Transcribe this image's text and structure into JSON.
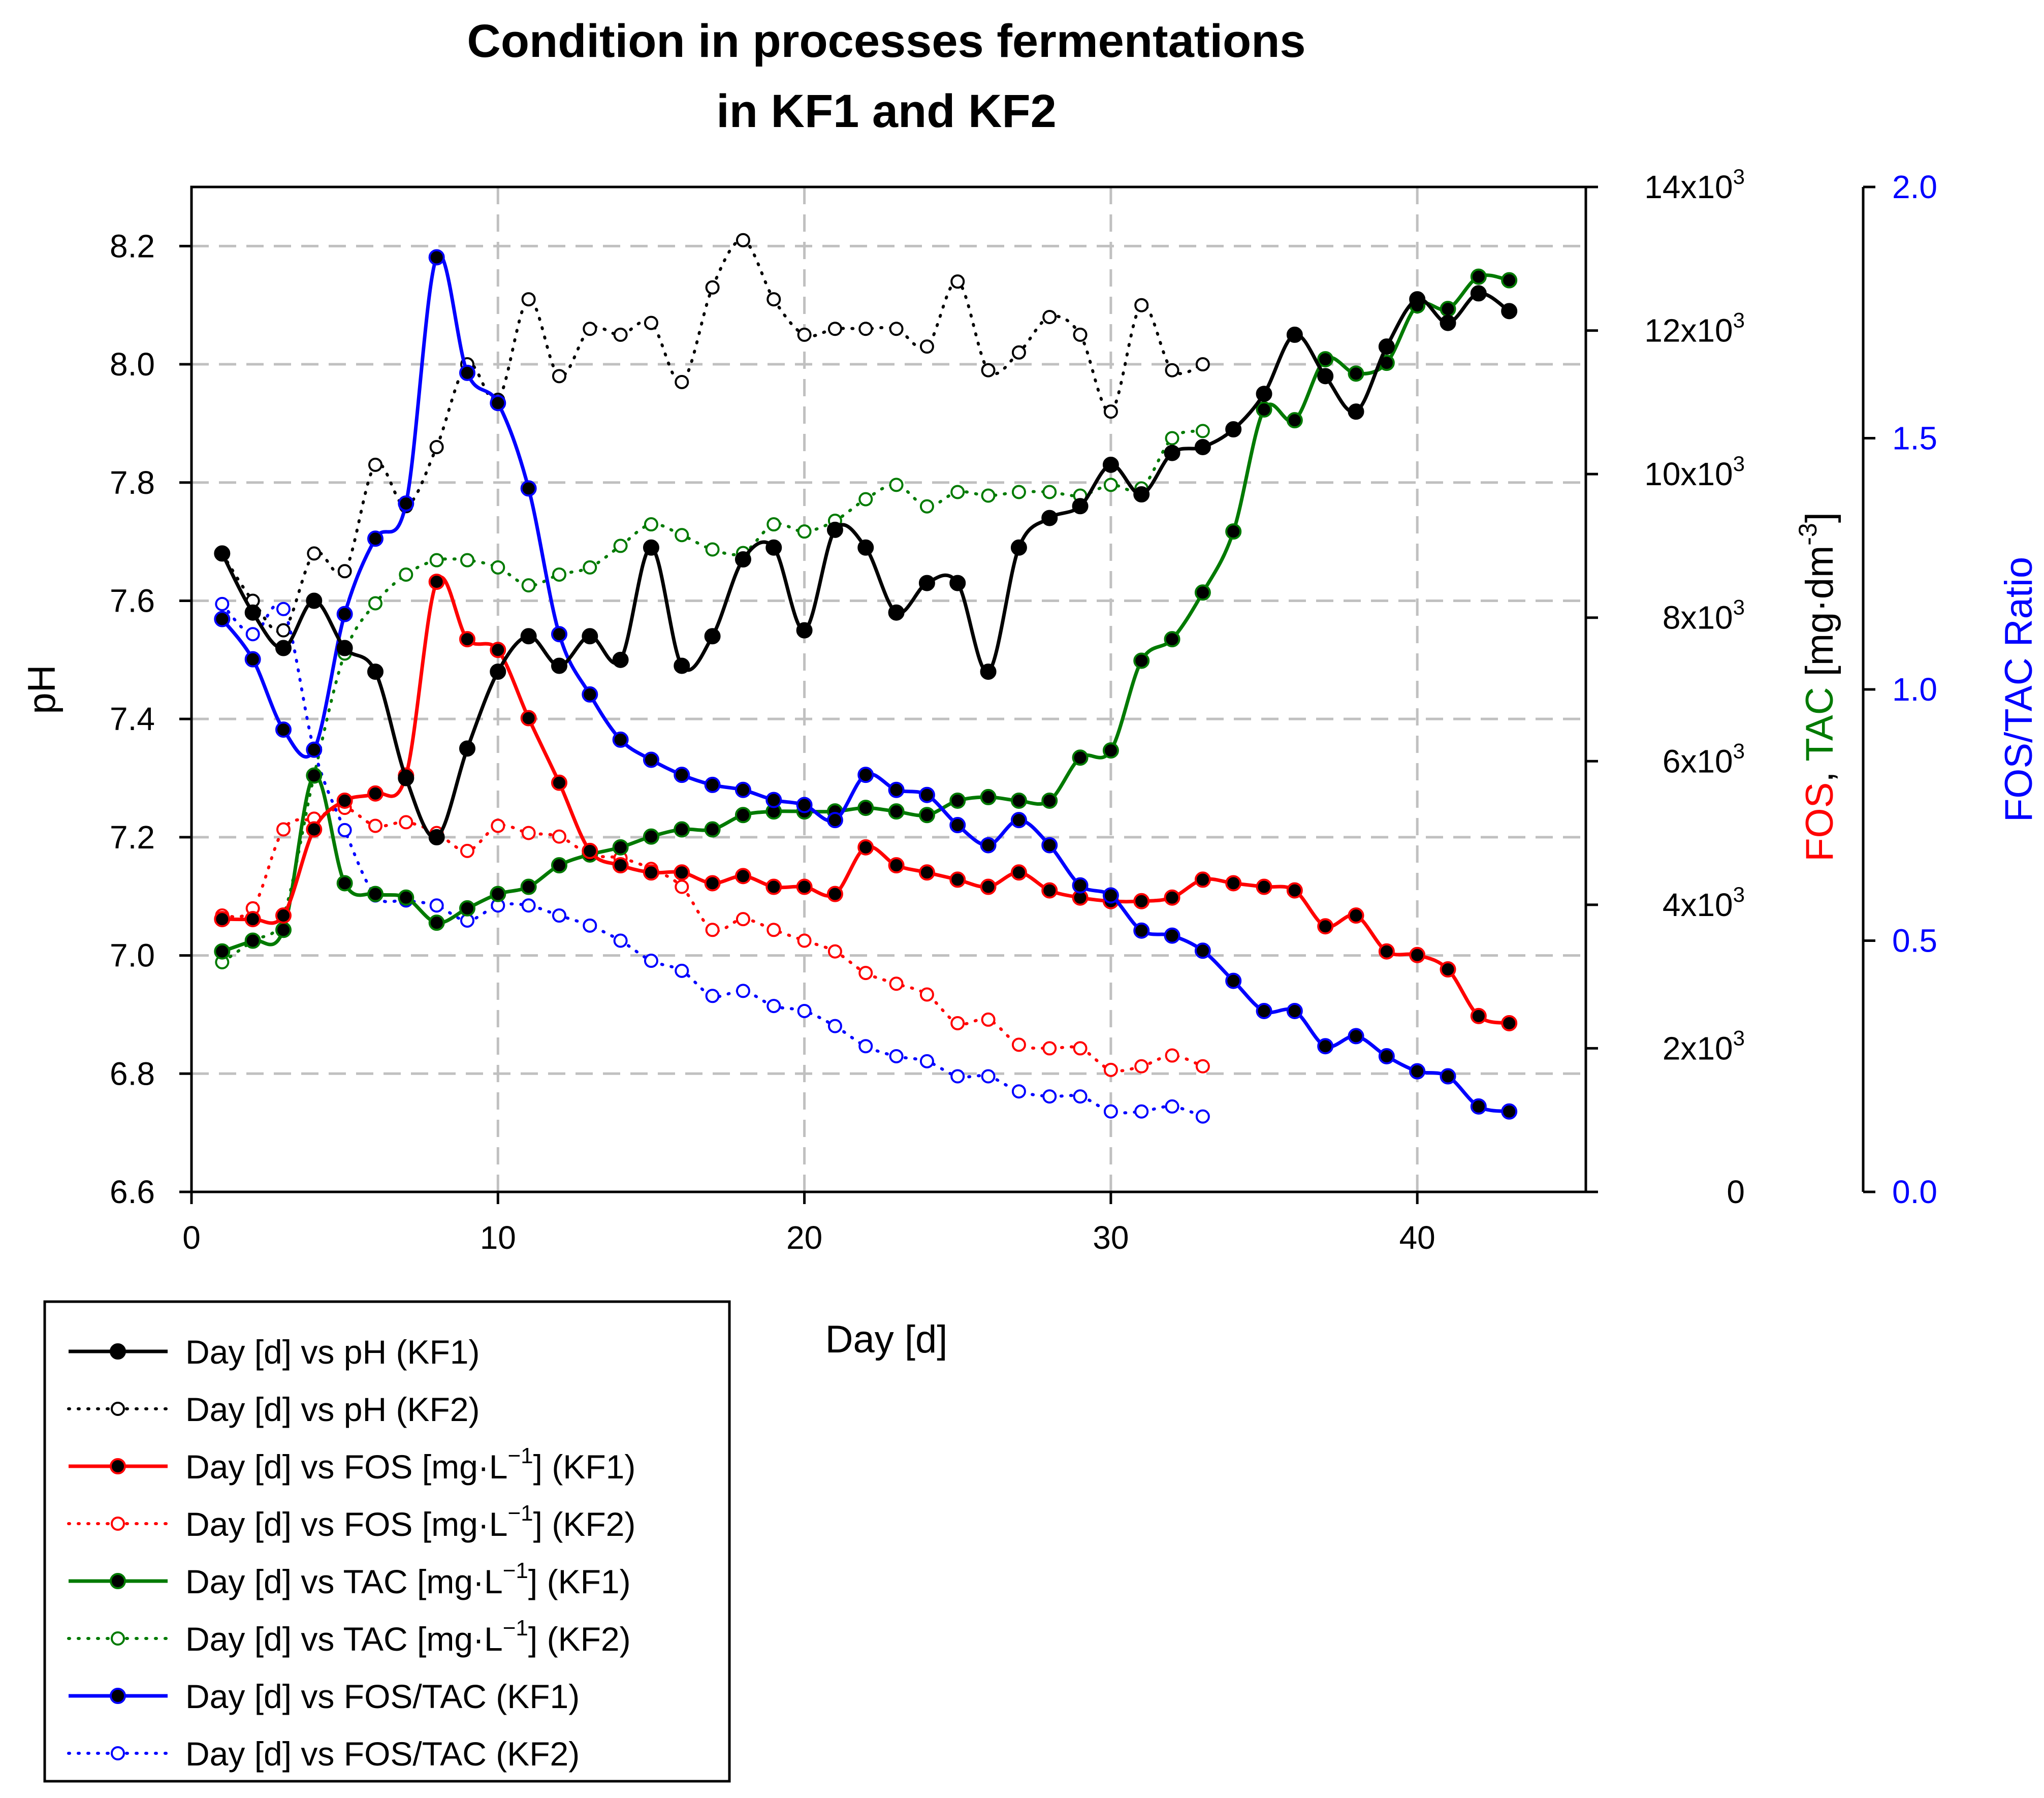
{
  "chart_data": {
    "type": "line",
    "title": "Condition in processes fermentations",
    "title_line2": "in KF1 and KF2",
    "xlabel": "Day [d]",
    "ylabel": "pH",
    "y2label": {
      "fos": "FOS",
      "comma": ",",
      "tac": "TAC",
      "unit": "[mg·dm",
      "unit_exp": "-3",
      "unit_close": "]"
    },
    "y3label": "FOS/TAC Ratio",
    "xlim": [
      0,
      45.5
    ],
    "ylim": [
      6.6,
      8.3
    ],
    "y2lim": [
      0,
      14000
    ],
    "y3lim": [
      0,
      2.0
    ],
    "x_ticks": [
      "0",
      "10",
      "20",
      "30",
      "40"
    ],
    "x_tick_values": [
      0,
      10,
      20,
      30,
      40
    ],
    "y_ticks": [
      "6.6",
      "6.8",
      "7.0",
      "7.2",
      "7.4",
      "7.6",
      "7.8",
      "8.0",
      "8.2"
    ],
    "y_tick_values": [
      6.6,
      6.8,
      7.0,
      7.2,
      7.4,
      7.6,
      7.8,
      8.0,
      8.2
    ],
    "y2_ticks": [
      {
        "mant": "0",
        "exp": ""
      },
      {
        "mant": "2x10",
        "exp": "3"
      },
      {
        "mant": "4x10",
        "exp": "3"
      },
      {
        "mant": "6x10",
        "exp": "3"
      },
      {
        "mant": "8x10",
        "exp": "3"
      },
      {
        "mant": "10x10",
        "exp": "3"
      },
      {
        "mant": "12x10",
        "exp": "3"
      },
      {
        "mant": "14x10",
        "exp": "3"
      }
    ],
    "y2_tick_values": [
      0,
      2000,
      4000,
      6000,
      8000,
      10000,
      12000,
      14000
    ],
    "y3_ticks": [
      "0.0",
      "0.5",
      "1.0",
      "1.5",
      "2.0"
    ],
    "y3_tick_values": [
      0.0,
      0.5,
      1.0,
      1.5,
      2.0
    ],
    "grid": true,
    "legend_position": "bottom-left",
    "colors": {
      "black": "#000000",
      "red": "#ff0000",
      "green": "#007a00",
      "blue": "#0000ff",
      "grid": "#c0c0c0"
    },
    "series": [
      {
        "name": "Day [d] vs pH (KF1)",
        "legend_text": "Day [d] vs pH (KF1)",
        "axis": "pH",
        "color": "black",
        "style": "solid",
        "marker": "filled",
        "x": [
          1,
          2,
          3,
          4,
          5,
          6,
          7,
          8,
          9,
          10,
          11,
          12,
          13,
          14,
          15,
          16,
          17,
          18,
          19,
          20,
          21,
          22,
          23,
          24,
          25,
          26,
          27,
          28,
          29,
          30,
          31,
          32,
          33,
          34,
          35,
          36,
          37,
          38,
          39,
          40,
          41,
          42,
          43
        ],
        "values": [
          7.68,
          7.58,
          7.52,
          7.6,
          7.52,
          7.48,
          7.3,
          7.2,
          7.35,
          7.48,
          7.54,
          7.49,
          7.54,
          7.5,
          7.69,
          7.49,
          7.54,
          7.67,
          7.69,
          7.55,
          7.72,
          7.69,
          7.58,
          7.63,
          7.63,
          7.48,
          7.69,
          7.74,
          7.76,
          7.83,
          7.78,
          7.85,
          7.86,
          7.89,
          7.95,
          8.05,
          7.98,
          7.92,
          8.03,
          8.11,
          8.07,
          8.12,
          8.09
        ]
      },
      {
        "name": "Day [d] vs pH (KF2)",
        "legend_text": "Day [d] vs pH (KF2)",
        "axis": "pH",
        "color": "black",
        "style": "dotted",
        "marker": "open",
        "x": [
          1,
          2,
          3,
          4,
          5,
          6,
          7,
          8,
          9,
          10,
          11,
          12,
          13,
          14,
          15,
          16,
          17,
          18,
          19,
          20,
          21,
          22,
          23,
          24,
          25,
          26,
          27,
          28,
          29,
          30,
          31,
          32,
          33
        ],
        "values": [
          7.68,
          7.6,
          7.55,
          7.68,
          7.65,
          7.83,
          7.76,
          7.86,
          8.0,
          7.94,
          8.11,
          7.98,
          8.06,
          8.05,
          8.07,
          7.97,
          8.13,
          8.21,
          8.11,
          8.05,
          8.06,
          8.06,
          8.06,
          8.03,
          8.14,
          7.99,
          8.02,
          8.08,
          8.05,
          7.92,
          8.1,
          7.99,
          8.0
        ]
      },
      {
        "name": "Day [d] vs FOS [mg·L−1] (KF1)",
        "legend_text": "Day [d] vs FOS [mg·L",
        "legend_exp": "−1",
        "legend_tail": "] (KF1)",
        "axis": "mg",
        "color": "red",
        "style": "solid",
        "marker": "filled",
        "x": [
          1,
          2,
          3,
          4,
          5,
          6,
          7,
          8,
          9,
          10,
          11,
          12,
          13,
          14,
          15,
          16,
          17,
          18,
          19,
          20,
          21,
          22,
          23,
          24,
          25,
          26,
          27,
          28,
          29,
          30,
          31,
          32,
          33,
          34,
          35,
          36,
          37,
          38,
          39,
          40,
          41,
          42,
          43
        ],
        "values": [
          3800,
          3800,
          3850,
          5050,
          5450,
          5550,
          5800,
          8500,
          7700,
          7550,
          6600,
          5700,
          4750,
          4550,
          4450,
          4450,
          4300,
          4400,
          4250,
          4250,
          4150,
          4800,
          4550,
          4450,
          4350,
          4250,
          4450,
          4200,
          4100,
          4050,
          4050,
          4100,
          4350,
          4300,
          4250,
          4200,
          3700,
          3850,
          3350,
          3300,
          3100,
          2450,
          2350
        ]
      },
      {
        "name": "Day [d] vs FOS [mg·L−1] (KF2)",
        "legend_text": "Day [d] vs FOS [mg·L",
        "legend_exp": "−1",
        "legend_tail": "] (KF2)",
        "axis": "mg",
        "color": "red",
        "style": "dotted",
        "marker": "open",
        "x": [
          1,
          2,
          3,
          4,
          5,
          6,
          7,
          8,
          9,
          10,
          11,
          12,
          13,
          14,
          15,
          16,
          17,
          18,
          19,
          20,
          21,
          22,
          23,
          24,
          25,
          26,
          27,
          28,
          29,
          30,
          31,
          32,
          33
        ],
        "values": [
          3850,
          3950,
          5050,
          5200,
          5350,
          5100,
          5150,
          5000,
          4750,
          5100,
          5000,
          4950,
          4700,
          4650,
          4500,
          4250,
          3650,
          3800,
          3650,
          3500,
          3350,
          3050,
          2900,
          2750,
          2350,
          2400,
          2050,
          2000,
          2000,
          1700,
          1750,
          1900,
          1750
        ]
      },
      {
        "name": "Day [d] vs TAC [mg·L−1] (KF1)",
        "legend_text": "Day [d] vs TAC [mg·L",
        "legend_exp": "−1",
        "legend_tail": "] (KF1)",
        "axis": "mg",
        "color": "green",
        "style": "solid",
        "marker": "filled",
        "x": [
          1,
          2,
          3,
          4,
          5,
          6,
          7,
          8,
          9,
          10,
          11,
          12,
          13,
          14,
          15,
          16,
          17,
          18,
          19,
          20,
          21,
          22,
          23,
          24,
          25,
          26,
          27,
          28,
          29,
          30,
          31,
          32,
          33,
          34,
          35,
          36,
          37,
          38,
          39,
          40,
          41,
          42,
          43
        ],
        "values": [
          3350,
          3500,
          3650,
          5800,
          4300,
          4150,
          4100,
          3750,
          3950,
          4150,
          4250,
          4550,
          4700,
          4800,
          4950,
          5050,
          5050,
          5250,
          5300,
          5300,
          5300,
          5350,
          5300,
          5250,
          5450,
          5500,
          5450,
          5450,
          6050,
          6150,
          7400,
          7700,
          8350,
          9200,
          10900,
          10750,
          11600,
          11400,
          11550,
          12350,
          12300,
          12750,
          12700
        ]
      },
      {
        "name": "Day [d] vs TAC [mg·L−1] (KF2)",
        "legend_text": "Day [d] vs TAC [mg·L",
        "legend_exp": "−1",
        "legend_tail": "] (KF2)",
        "axis": "mg",
        "color": "green",
        "style": "dotted",
        "marker": "open",
        "x": [
          1,
          2,
          3,
          4,
          5,
          6,
          7,
          8,
          9,
          10,
          11,
          12,
          13,
          14,
          15,
          16,
          17,
          18,
          19,
          20,
          21,
          22,
          23,
          24,
          25,
          26,
          27,
          28,
          29,
          30,
          31,
          32,
          33
        ],
        "values": [
          3200,
          3500,
          3850,
          5800,
          7500,
          8200,
          8600,
          8800,
          8800,
          8700,
          8450,
          8600,
          8700,
          9000,
          9300,
          9150,
          8950,
          8900,
          9300,
          9200,
          9350,
          9650,
          9850,
          9550,
          9750,
          9700,
          9750,
          9750,
          9700,
          9850,
          9800,
          10500,
          10600
        ]
      },
      {
        "name": "Day [d] vs FOS/TAC (KF1)",
        "legend_text": "Day [d] vs FOS/TAC (KF1)",
        "axis": "ratio",
        "color": "blue",
        "style": "solid",
        "marker": "filled",
        "x": [
          1,
          2,
          3,
          4,
          5,
          6,
          7,
          8,
          9,
          10,
          11,
          12,
          13,
          14,
          15,
          16,
          17,
          18,
          19,
          20,
          21,
          22,
          23,
          24,
          25,
          26,
          27,
          28,
          29,
          30,
          31,
          32,
          33,
          34,
          35,
          36,
          37,
          38,
          39,
          40,
          41,
          42,
          43
        ],
        "values": [
          1.14,
          1.06,
          0.92,
          0.88,
          1.15,
          1.3,
          1.37,
          1.86,
          1.63,
          1.57,
          1.4,
          1.11,
          0.99,
          0.9,
          0.86,
          0.83,
          0.81,
          0.8,
          0.78,
          0.77,
          0.74,
          0.83,
          0.8,
          0.79,
          0.73,
          0.69,
          0.74,
          0.69,
          0.61,
          0.59,
          0.52,
          0.51,
          0.48,
          0.42,
          0.36,
          0.36,
          0.29,
          0.31,
          0.27,
          0.24,
          0.23,
          0.17,
          0.16
        ]
      },
      {
        "name": "Day [d] vs FOS/TAC (KF2)",
        "legend_text": "Day [d] vs FOS/TAC (KF2)",
        "axis": "ratio",
        "color": "blue",
        "style": "dotted",
        "marker": "open",
        "x": [
          1,
          2,
          3,
          4,
          5,
          6,
          7,
          8,
          9,
          10,
          11,
          12,
          13,
          14,
          15,
          16,
          17,
          18,
          19,
          20,
          21,
          22,
          23,
          24,
          25,
          26,
          27,
          28,
          29,
          30,
          31,
          32,
          33
        ],
        "values": [
          1.17,
          1.11,
          1.16,
          0.88,
          0.72,
          0.59,
          0.58,
          0.57,
          0.54,
          0.57,
          0.57,
          0.55,
          0.53,
          0.5,
          0.46,
          0.44,
          0.39,
          0.4,
          0.37,
          0.36,
          0.33,
          0.29,
          0.27,
          0.26,
          0.23,
          0.23,
          0.2,
          0.19,
          0.19,
          0.16,
          0.16,
          0.17,
          0.15
        ]
      }
    ]
  }
}
